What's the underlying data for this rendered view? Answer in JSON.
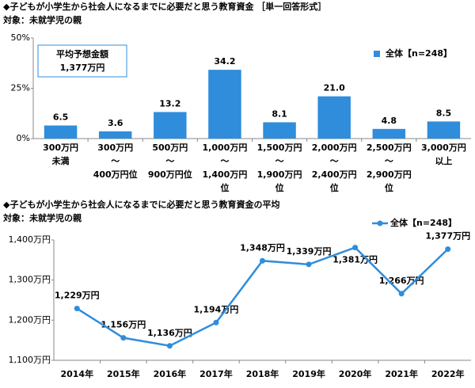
{
  "chart_data": [
    {
      "type": "bar",
      "title": "◆子どもが小学生から社会人になるまでに必要だと思う教育資金 ［単一回答形式］",
      "subtitle": "対象：未就学児の親",
      "annotation": [
        "平均予想金額",
        "1,377万円"
      ],
      "categories": [
        [
          "300万円",
          "未満"
        ],
        [
          "300万円",
          "〜",
          "400万円位"
        ],
        [
          "500万円",
          "〜",
          "900万円位"
        ],
        [
          "1,000万円",
          "〜",
          "1,400万円",
          "位"
        ],
        [
          "1,500万円",
          "〜",
          "1,900万円",
          "位"
        ],
        [
          "2,000万円",
          "〜",
          "2,400万円",
          "位"
        ],
        [
          "2,500万円",
          "〜",
          "2,900万円",
          "位"
        ],
        [
          "3,000万円",
          "以上"
        ]
      ],
      "series": [
        {
          "name": "全体【n=248】",
          "color": "#2f8ddc",
          "values": [
            6.5,
            3.6,
            13.2,
            34.2,
            8.1,
            21.0,
            4.8,
            8.5
          ],
          "value_labels": [
            "6.5",
            "3.6",
            "13.2",
            "34.2",
            "8.1",
            "21.0",
            "4.8",
            "8.5"
          ]
        }
      ],
      "ylim": [
        0,
        50
      ],
      "yticks": [
        {
          "value": 0,
          "label": "0%"
        },
        {
          "value": 25,
          "label": "25%"
        },
        {
          "value": 50,
          "label": "50%"
        }
      ],
      "legend": "upper-right"
    },
    {
      "type": "line",
      "title": "◆子どもが小学生から社会人になるまでに必要だと思う教育資金の平均",
      "subtitle": "対象：未就学児の親",
      "categories": [
        "2014年",
        "2015年",
        "2016年",
        "2017年",
        "2018年",
        "2019年",
        "2020年",
        "2021年",
        "2022年"
      ],
      "series": [
        {
          "name": "全体【n=248】",
          "color": "#2f8ddc",
          "values": [
            1229,
            1156,
            1136,
            1194,
            1348,
            1339,
            1381,
            1266,
            1377
          ],
          "value_labels": [
            "1,229万円",
            "1,156万円",
            "1,136万円",
            "1,194万円",
            "1,348万円",
            "1,339万円",
            "1,381万円",
            "1,266万円",
            "1,377万円"
          ]
        }
      ],
      "ylim": [
        1100,
        1400
      ],
      "yticks": [
        {
          "value": 1100,
          "label": "1,100万円"
        },
        {
          "value": 1200,
          "label": "1,200万円"
        },
        {
          "value": 1300,
          "label": "1,300万円"
        },
        {
          "value": 1400,
          "label": "1,400万円"
        }
      ],
      "legend": "upper-right"
    }
  ]
}
